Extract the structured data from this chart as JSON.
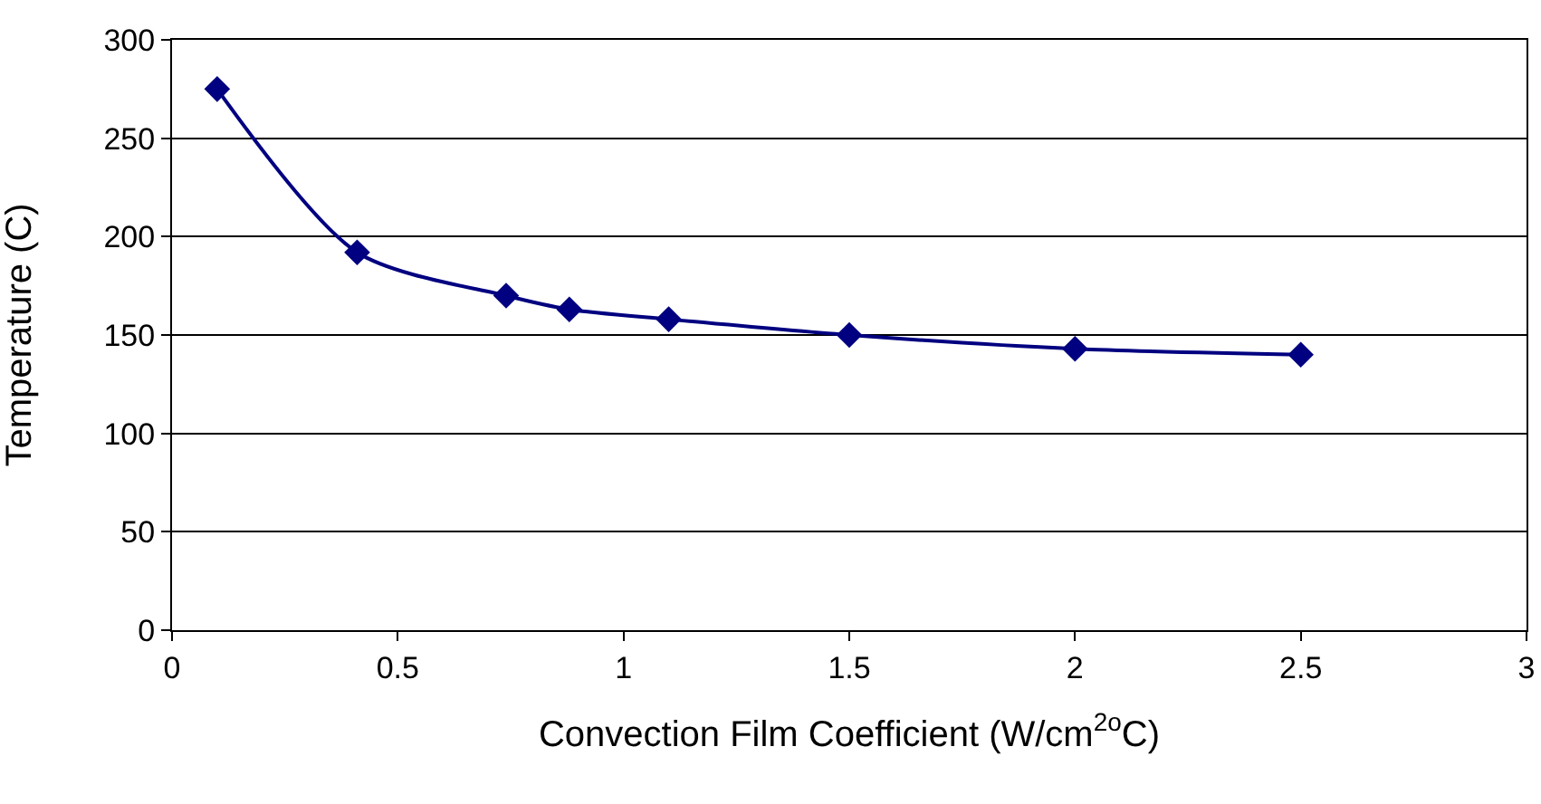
{
  "chart_data": {
    "type": "line",
    "xlabel": "Convection Film Coefficient (W/cm$^{2o}$C)",
    "ylabel": "Temperature (C)",
    "x": [
      0.1,
      0.41,
      0.74,
      0.88,
      1.1,
      1.5,
      2.0,
      2.5
    ],
    "series": [
      {
        "color": "#000080",
        "values": [
          275,
          192,
          170,
          163,
          158,
          150,
          143,
          140
        ]
      }
    ],
    "xlim": [
      0,
      3
    ],
    "xticks": [
      0,
      0.5,
      1,
      1.5,
      2,
      2.5,
      3
    ],
    "ylim": [
      0,
      300
    ],
    "yticks": [
      0,
      50,
      100,
      150,
      200,
      250,
      300
    ],
    "grid": "y",
    "legend": false,
    "marker": "diamond",
    "line_style": "solid"
  }
}
